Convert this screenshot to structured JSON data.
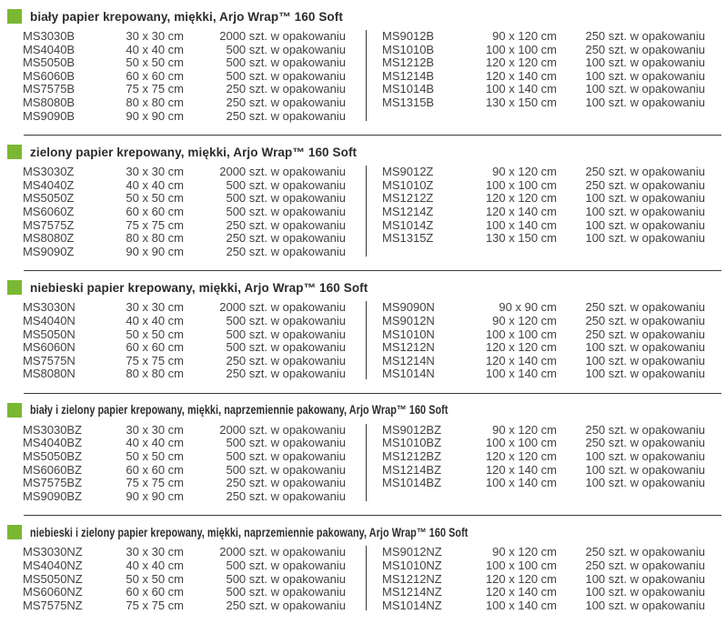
{
  "page": {
    "bullet_color": "#7bb733",
    "rule_color": "#3a3a3c"
  },
  "sections": [
    {
      "title": "biały papier krepowany, miękki, Arjo Wrap™ 160 Soft",
      "left_rows": [
        [
          "MS3030B",
          "30 x 30 cm",
          "2000 szt. w opakowaniu"
        ],
        [
          "MS4040B",
          "40 x 40 cm",
          "500 szt. w opakowaniu"
        ],
        [
          "MS5050B",
          "50 x 50 cm",
          "500 szt. w opakowaniu"
        ],
        [
          "MS6060B",
          "60 x 60 cm",
          "500 szt. w opakowaniu"
        ],
        [
          "MS7575B",
          "75 x 75 cm",
          "250 szt. w opakowaniu"
        ],
        [
          "MS8080B",
          "80 x 80 cm",
          "250 szt. w opakowaniu"
        ],
        [
          "MS9090B",
          "90 x 90 cm",
          "250 szt. w opakowaniu"
        ]
      ],
      "right_rows": [
        [
          "MS9012B",
          "90 x 120 cm",
          "250 szt. w opakowaniu"
        ],
        [
          "MS1010B",
          "100 x 100 cm",
          "250 szt. w opakowaniu"
        ],
        [
          "MS1212B",
          "120 x 120 cm",
          "100 szt. w opakowaniu"
        ],
        [
          "MS1214B",
          "120 x 140 cm",
          "100 szt. w opakowaniu"
        ],
        [
          "MS1014B",
          "100 x 140 cm",
          "100 szt. w opakowaniu"
        ],
        [
          "MS1315B",
          "130 x 150 cm",
          "100 szt. w opakowaniu"
        ]
      ]
    },
    {
      "title": "zielony papier krepowany, miękki, Arjo Wrap™ 160 Soft",
      "left_rows": [
        [
          "MS3030Z",
          "30 x 30 cm",
          "2000 szt. w opakowaniu"
        ],
        [
          "MS4040Z",
          "40 x 40 cm",
          "500 szt. w opakowaniu"
        ],
        [
          "MS5050Z",
          "50 x 50 cm",
          "500 szt. w opakowaniu"
        ],
        [
          "MS6060Z",
          "60 x 60 cm",
          "500 szt. w opakowaniu"
        ],
        [
          "MS7575Z",
          "75 x 75 cm",
          "250 szt. w opakowaniu"
        ],
        [
          "MS8080Z",
          "80 x 80 cm",
          "250 szt. w opakowaniu"
        ],
        [
          "MS9090Z",
          "90 x 90 cm",
          "250 szt. w opakowaniu"
        ]
      ],
      "right_rows": [
        [
          "MS9012Z",
          "90 x 120 cm",
          "250 szt. w opakowaniu"
        ],
        [
          "MS1010Z",
          "100 x 100 cm",
          "250 szt. w opakowaniu"
        ],
        [
          "MS1212Z",
          "120 x 120 cm",
          "100 szt. w opakowaniu"
        ],
        [
          "MS1214Z",
          "120 x 140 cm",
          "100 szt. w opakowaniu"
        ],
        [
          "MS1014Z",
          "100 x 140 cm",
          "100 szt. w opakowaniu"
        ],
        [
          "MS1315Z",
          "130 x 150 cm",
          "100 szt. w opakowaniu"
        ]
      ]
    },
    {
      "title": "niebieski papier krepowany, miękki, Arjo Wrap™ 160 Soft",
      "left_rows": [
        [
          "MS3030N",
          "30 x 30 cm",
          "2000 szt. w opakowaniu"
        ],
        [
          "MS4040N",
          "40 x 40 cm",
          "500 szt. w opakowaniu"
        ],
        [
          "MS5050N",
          "50 x 50 cm",
          "500 szt. w opakowaniu"
        ],
        [
          "MS6060N",
          "60 x 60 cm",
          "500 szt. w opakowaniu"
        ],
        [
          "MS7575N",
          "75 x 75 cm",
          "250 szt. w opakowaniu"
        ],
        [
          "MS8080N",
          "80 x 80 cm",
          "250 szt. w opakowaniu"
        ]
      ],
      "right_rows": [
        [
          "MS9090N",
          "90 x  90 cm",
          "250 szt. w opakowaniu"
        ],
        [
          "MS9012N",
          "90 x 120 cm",
          "250 szt. w opakowaniu"
        ],
        [
          "MS1010N",
          "100 x 100 cm",
          "250 szt. w opakowaniu"
        ],
        [
          "MS1212N",
          "120 x 120 cm",
          "100 szt. w opakowaniu"
        ],
        [
          "MS1214N",
          "120 x 140 cm",
          "100 szt. w opakowaniu"
        ],
        [
          "MS1014N",
          "100 x 140 cm",
          "100 szt. w opakowaniu"
        ]
      ]
    },
    {
      "title": "biały i zielony papier krepowany, miękki, naprzemiennie pakowany, Arjo Wrap™ 160 Soft",
      "left_rows": [
        [
          "MS3030BZ",
          "30 x 30 cm",
          "2000 szt. w opakowaniu"
        ],
        [
          "MS4040BZ",
          "40 x 40 cm",
          "500 szt. w opakowaniu"
        ],
        [
          "MS5050BZ",
          "50 x 50 cm",
          "500 szt. w opakowaniu"
        ],
        [
          "MS6060BZ",
          "60 x 60 cm",
          "500 szt. w opakowaniu"
        ],
        [
          "MS7575BZ",
          "75 x 75 cm",
          "250 szt. w opakowaniu"
        ],
        [
          "MS9090BZ",
          "90 x 90 cm",
          "250 szt. w opakowaniu"
        ]
      ],
      "right_rows": [
        [
          "MS9012BZ",
          "90 x 120 cm",
          "250 szt. w opakowaniu"
        ],
        [
          "MS1010BZ",
          "100 x 100 cm",
          "250 szt. w opakowaniu"
        ],
        [
          "MS1212BZ",
          "120 x 120 cm",
          "100 szt. w opakowaniu"
        ],
        [
          "MS1214BZ",
          "120 x 140 cm",
          "100 szt. w opakowaniu"
        ],
        [
          "MS1014BZ",
          "100 x 140 cm",
          "100 szt. w opakowaniu"
        ]
      ]
    },
    {
      "title": "niebieski i zielony papier krepowany, miękki, naprzemiennie pakowany, Arjo Wrap™ 160 Soft",
      "left_rows": [
        [
          "MS3030NZ",
          "30 x 30 cm",
          "2000 szt. w opakowaniu"
        ],
        [
          "MS4040NZ",
          "40 x 40 cm",
          "500 szt. w opakowaniu"
        ],
        [
          "MS5050NZ",
          "50 x 50 cm",
          "500 szt. w opakowaniu"
        ],
        [
          "MS6060NZ",
          "60 x 60 cm",
          "500 szt. w opakowaniu"
        ],
        [
          "MS7575NZ",
          "75 x 75 cm",
          "250 szt. w opakowaniu"
        ]
      ],
      "right_rows": [
        [
          "MS9012NZ",
          "90 x 120 cm",
          "250 szt. w opakowaniu"
        ],
        [
          "MS1010NZ",
          "100 x 100 cm",
          "250 szt. w opakowaniu"
        ],
        [
          "MS1212NZ",
          "120 x 120 cm",
          "100 szt. w opakowaniu"
        ],
        [
          "MS1214NZ",
          "120 x 140 cm",
          "100 szt. w opakowaniu"
        ],
        [
          "MS1014NZ",
          "100 x 140 cm",
          "100 szt. w opakowaniu"
        ]
      ]
    }
  ]
}
